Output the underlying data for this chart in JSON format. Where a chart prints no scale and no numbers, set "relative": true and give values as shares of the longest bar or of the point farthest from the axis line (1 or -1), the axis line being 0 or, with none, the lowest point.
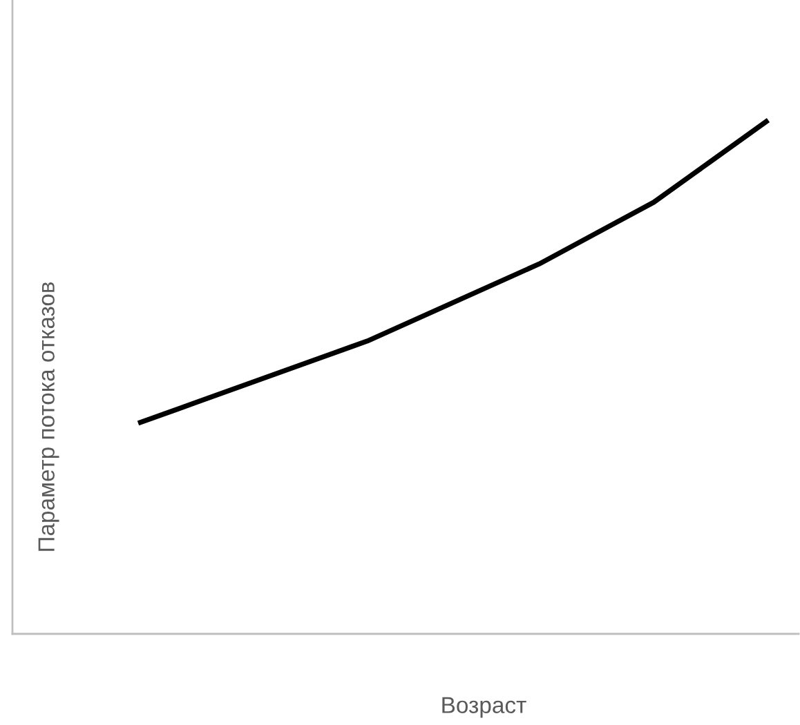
{
  "chart_data": {
    "type": "line",
    "relative": true,
    "xlabel": "Возраст",
    "ylabel": "Параметр потока отказов",
    "categories": [
      null,
      null,
      null,
      null,
      null,
      null,
      null,
      null,
      null,
      null,
      null,
      null
    ],
    "series": [
      {
        "color": "#000000",
        "values": [
          0.41,
          0.45,
          0.49,
          0.53,
          0.57,
          0.62,
          0.67,
          0.72,
          0.78,
          0.84,
          0.92,
          1.0
        ]
      }
    ],
    "marker": "none",
    "line_style": "solid"
  }
}
